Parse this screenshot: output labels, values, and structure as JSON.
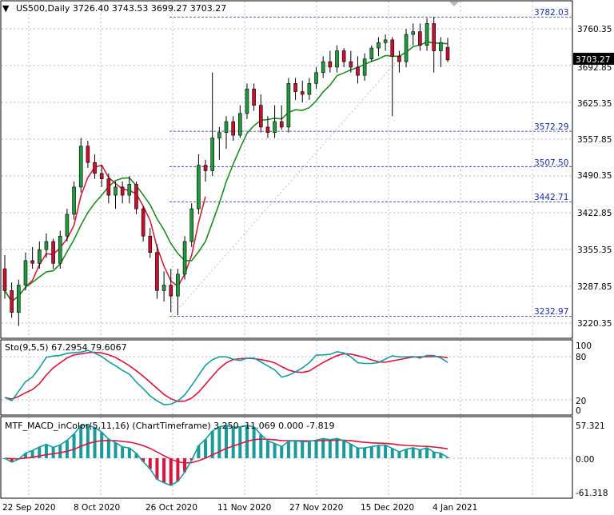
{
  "main": {
    "header": "US500,Daily  3726.40 3743.53 3699.27 3703.27",
    "price_ticks": [
      "3760.35",
      "3692.85",
      "3625.35",
      "3557.85",
      "3490.35",
      "3422.85",
      "3355.35",
      "3287.85",
      "3220.35"
    ],
    "last_price": "3703.27",
    "fib_levels": [
      "3782.03",
      "3572.29",
      "3507.50",
      "3442.71",
      "3232.97"
    ]
  },
  "stoch": {
    "header": "Sto(9,5,5) 67.2954 79.6067",
    "ticks": [
      "100",
      "80",
      "20",
      "0"
    ]
  },
  "macd": {
    "header": "MTF_MACD_inColor(5,11,16) (ChartTimeframe) 3.250 -11.069 0.000 -7.819",
    "ticks": [
      "57.321",
      "0.00",
      "-61.318"
    ]
  },
  "x_labels": [
    "22 Sep 2020",
    "8 Oct 2020",
    "26 Oct 2020",
    "11 Nov 2020",
    "27 Nov 2020",
    "15 Dec 2020",
    "4 Jan 2021"
  ],
  "colors": {
    "bull": "#1f9a3c",
    "bear": "#c8102e",
    "ma_green": "#1e8c1e",
    "ma_red": "#d21f3c",
    "stoch_main": "#169e9e",
    "stoch_signal": "#dc143c",
    "grid": "#9aa4b2",
    "fib": "#1b2ea0"
  },
  "chart_data": {
    "type": "candlestick",
    "symbol": "US500",
    "timeframe": "Daily",
    "ylim": [
      3200,
      3800
    ],
    "candles": [
      [
        3320,
        3345,
        3265,
        3280
      ],
      [
        3280,
        3295,
        3230,
        3240
      ],
      [
        3240,
        3300,
        3215,
        3290
      ],
      [
        3290,
        3350,
        3280,
        3335
      ],
      [
        3335,
        3360,
        3320,
        3330
      ],
      [
        3330,
        3370,
        3320,
        3355
      ],
      [
        3355,
        3385,
        3340,
        3370
      ],
      [
        3370,
        3375,
        3320,
        3330
      ],
      [
        3330,
        3390,
        3320,
        3380
      ],
      [
        3380,
        3430,
        3370,
        3420
      ],
      [
        3420,
        3480,
        3410,
        3470
      ],
      [
        3470,
        3560,
        3460,
        3545
      ],
      [
        3545,
        3555,
        3505,
        3515
      ],
      [
        3515,
        3530,
        3485,
        3495
      ],
      [
        3495,
        3510,
        3470,
        3485
      ],
      [
        3485,
        3495,
        3440,
        3455
      ],
      [
        3455,
        3480,
        3430,
        3470
      ],
      [
        3470,
        3480,
        3440,
        3455
      ],
      [
        3455,
        3490,
        3440,
        3475
      ],
      [
        3475,
        3480,
        3420,
        3430
      ],
      [
        3430,
        3435,
        3370,
        3380
      ],
      [
        3380,
        3395,
        3340,
        3350
      ],
      [
        3350,
        3365,
        3265,
        3280
      ],
      [
        3280,
        3315,
        3260,
        3290
      ],
      [
        3290,
        3320,
        3240,
        3270
      ],
      [
        3270,
        3320,
        3235,
        3310
      ],
      [
        3310,
        3380,
        3300,
        3370
      ],
      [
        3370,
        3440,
        3360,
        3430
      ],
      [
        3430,
        3530,
        3420,
        3510
      ],
      [
        3510,
        3520,
        3480,
        3500
      ],
      [
        3500,
        3680,
        3490,
        3560
      ],
      [
        3560,
        3580,
        3520,
        3570
      ],
      [
        3570,
        3600,
        3540,
        3590
      ],
      [
        3590,
        3600,
        3555,
        3565
      ],
      [
        3565,
        3620,
        3560,
        3605
      ],
      [
        3605,
        3660,
        3595,
        3650
      ],
      [
        3650,
        3660,
        3610,
        3620
      ],
      [
        3620,
        3640,
        3570,
        3580
      ],
      [
        3580,
        3600,
        3560,
        3570
      ],
      [
        3570,
        3620,
        3560,
        3590
      ],
      [
        3590,
        3620,
        3575,
        3580
      ],
      [
        3580,
        3670,
        3570,
        3660
      ],
      [
        3660,
        3670,
        3630,
        3645
      ],
      [
        3645,
        3665,
        3625,
        3640
      ],
      [
        3640,
        3670,
        3630,
        3660
      ],
      [
        3660,
        3690,
        3650,
        3680
      ],
      [
        3680,
        3710,
        3670,
        3700
      ],
      [
        3700,
        3720,
        3680,
        3690
      ],
      [
        3690,
        3730,
        3680,
        3720
      ],
      [
        3720,
        3725,
        3690,
        3700
      ],
      [
        3700,
        3720,
        3680,
        3690
      ],
      [
        3690,
        3710,
        3660,
        3675
      ],
      [
        3675,
        3715,
        3665,
        3705
      ],
      [
        3705,
        3730,
        3700,
        3725
      ],
      [
        3725,
        3745,
        3710,
        3735
      ],
      [
        3735,
        3750,
        3720,
        3740
      ],
      [
        3740,
        3745,
        3600,
        3710
      ],
      [
        3710,
        3720,
        3680,
        3700
      ],
      [
        3700,
        3760,
        3690,
        3750
      ],
      [
        3750,
        3770,
        3730,
        3755
      ],
      [
        3755,
        3770,
        3720,
        3730
      ],
      [
        3730,
        3780,
        3720,
        3770
      ],
      [
        3770,
        3782,
        3680,
        3720
      ],
      [
        3720,
        3745,
        3690,
        3735
      ],
      [
        3726.4,
        3743.53,
        3699.27,
        3703.27
      ]
    ],
    "stoch_range": [
      0,
      100
    ],
    "macd_range": [
      -61.318,
      57.321
    ]
  }
}
